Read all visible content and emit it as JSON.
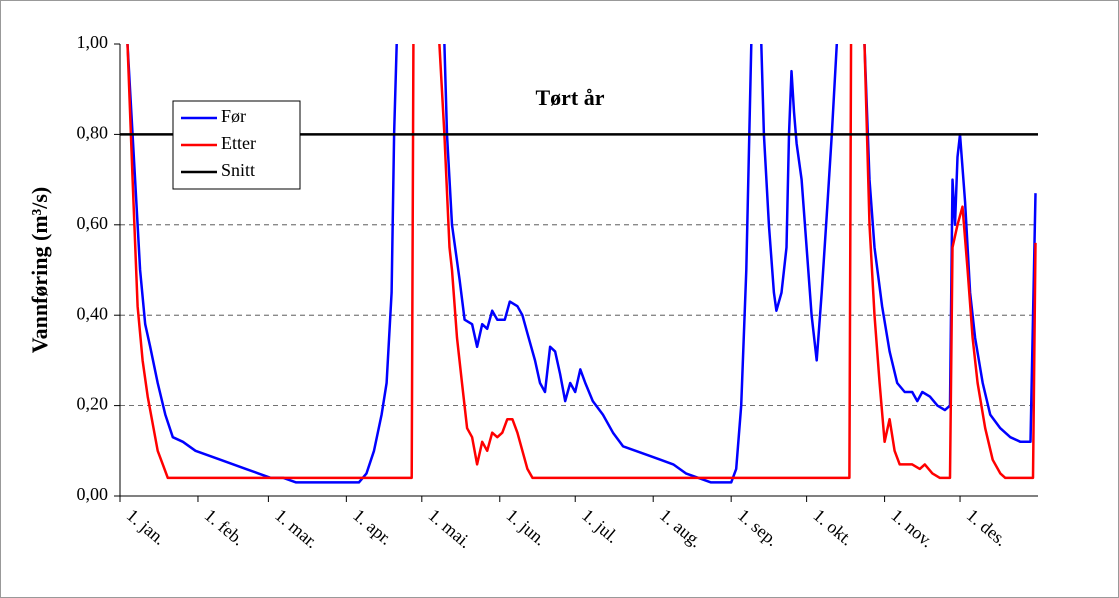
{
  "chart_data": {
    "type": "line",
    "y_label": "Vannføring (m³/s)",
    "annotation": "Tørt år",
    "xlim": [
      0,
      365
    ],
    "xticks": [
      {
        "value": 0,
        "label": "1. jan."
      },
      {
        "value": 31,
        "label": "1. feb."
      },
      {
        "value": 59,
        "label": "1. mar."
      },
      {
        "value": 90,
        "label": "1. apr."
      },
      {
        "value": 120,
        "label": "1. mai."
      },
      {
        "value": 151,
        "label": "1. jun."
      },
      {
        "value": 181,
        "label": "1. jul."
      },
      {
        "value": 212,
        "label": "1. aug."
      },
      {
        "value": 243,
        "label": "1. sep."
      },
      {
        "value": 273,
        "label": "1. okt."
      },
      {
        "value": 304,
        "label": "1. nov."
      },
      {
        "value": 334,
        "label": "1. des."
      }
    ],
    "ylim": [
      0,
      1
    ],
    "yticks": [
      {
        "value": 0,
        "label": "0,00"
      },
      {
        "value": 0.2,
        "label": "0,20"
      },
      {
        "value": 0.4,
        "label": "0,40"
      },
      {
        "value": 0.6,
        "label": "0,60"
      },
      {
        "value": 0.8,
        "label": "0,80"
      },
      {
        "value": 1,
        "label": "1,00"
      }
    ],
    "grid": true,
    "legend": "upper left",
    "series": [
      {
        "name": "Før",
        "color": "#0000ff",
        "x": [
          3,
          6,
          8,
          10,
          12,
          15,
          18,
          21,
          25,
          30,
          40,
          50,
          55,
          60,
          65,
          70,
          80,
          90,
          95,
          98,
          101,
          104,
          106,
          108,
          109,
          110,
          111,
          128,
          129,
          130,
          131,
          132,
          135,
          137,
          140,
          142,
          144,
          146,
          148,
          150,
          153,
          155,
          158,
          160,
          162,
          165,
          167,
          169,
          171,
          173,
          175,
          177,
          179,
          181,
          183,
          185,
          188,
          192,
          196,
          200,
          205,
          210,
          215,
          220,
          225,
          230,
          235,
          240,
          243,
          245,
          247,
          249,
          251,
          252,
          254,
          255,
          256,
          258,
          260,
          261,
          263,
          265,
          266,
          267,
          268,
          269,
          271,
          273,
          275,
          277,
          279,
          281,
          283,
          285,
          286,
          295,
          296,
          298,
          300,
          303,
          306,
          309,
          312,
          315,
          317,
          319,
          322,
          325,
          328,
          330,
          331,
          332,
          333,
          334,
          336,
          338,
          340,
          343,
          346,
          350,
          354,
          358,
          362,
          364
        ],
        "values": [
          1.0,
          0.7,
          0.5,
          0.38,
          0.33,
          0.25,
          0.18,
          0.13,
          0.12,
          0.1,
          0.08,
          0.06,
          0.05,
          0.04,
          0.04,
          0.03,
          0.03,
          0.03,
          0.03,
          0.05,
          0.1,
          0.18,
          0.25,
          0.45,
          0.8,
          1.0,
          1.5,
          1.5,
          1.0,
          0.8,
          0.7,
          0.6,
          0.48,
          0.39,
          0.38,
          0.33,
          0.38,
          0.37,
          0.41,
          0.39,
          0.39,
          0.43,
          0.42,
          0.4,
          0.36,
          0.3,
          0.25,
          0.23,
          0.33,
          0.32,
          0.27,
          0.21,
          0.25,
          0.23,
          0.28,
          0.25,
          0.21,
          0.18,
          0.14,
          0.11,
          0.1,
          0.09,
          0.08,
          0.07,
          0.05,
          0.04,
          0.03,
          0.03,
          0.03,
          0.06,
          0.2,
          0.5,
          1.0,
          1.5,
          1.5,
          1.0,
          0.8,
          0.6,
          0.45,
          0.41,
          0.45,
          0.55,
          0.8,
          0.94,
          0.85,
          0.78,
          0.7,
          0.55,
          0.4,
          0.3,
          0.45,
          0.62,
          0.8,
          1.0,
          1.5,
          1.5,
          1.0,
          0.7,
          0.55,
          0.42,
          0.32,
          0.25,
          0.23,
          0.23,
          0.21,
          0.23,
          0.22,
          0.2,
          0.19,
          0.2,
          0.7,
          0.6,
          0.75,
          0.8,
          0.65,
          0.45,
          0.35,
          0.25,
          0.18,
          0.15,
          0.13,
          0.12,
          0.12,
          0.67
        ]
      },
      {
        "name": "Etter",
        "color": "#ff0000",
        "x": [
          3,
          5,
          7,
          9,
          11,
          13,
          15,
          17,
          19,
          60,
          100,
          116,
          117,
          126,
          127,
          129,
          131,
          132,
          134,
          136,
          138,
          140,
          142,
          144,
          146,
          148,
          150,
          152,
          154,
          156,
          158,
          160,
          162,
          164,
          290,
          291,
          295,
          296,
          298,
          300,
          302,
          304,
          306,
          308,
          310,
          315,
          318,
          320,
          323,
          326,
          330,
          331,
          333,
          335,
          337,
          339,
          341,
          344,
          347,
          350,
          352,
          363,
          364
        ],
        "values": [
          1.0,
          0.7,
          0.42,
          0.3,
          0.22,
          0.16,
          0.1,
          0.07,
          0.04,
          0.04,
          0.04,
          0.04,
          1.5,
          1.5,
          1.0,
          0.8,
          0.55,
          0.5,
          0.35,
          0.25,
          0.15,
          0.13,
          0.07,
          0.12,
          0.1,
          0.14,
          0.13,
          0.14,
          0.17,
          0.17,
          0.14,
          0.1,
          0.06,
          0.04,
          0.04,
          1.5,
          1.5,
          1.0,
          0.6,
          0.4,
          0.25,
          0.12,
          0.17,
          0.1,
          0.07,
          0.07,
          0.06,
          0.07,
          0.05,
          0.04,
          0.04,
          0.55,
          0.6,
          0.64,
          0.5,
          0.35,
          0.25,
          0.15,
          0.08,
          0.05,
          0.04,
          0.04,
          0.56
        ]
      },
      {
        "name": "Snitt",
        "color": "#000000",
        "x": [
          0,
          365
        ],
        "values": [
          0.8,
          0.8
        ]
      }
    ]
  }
}
